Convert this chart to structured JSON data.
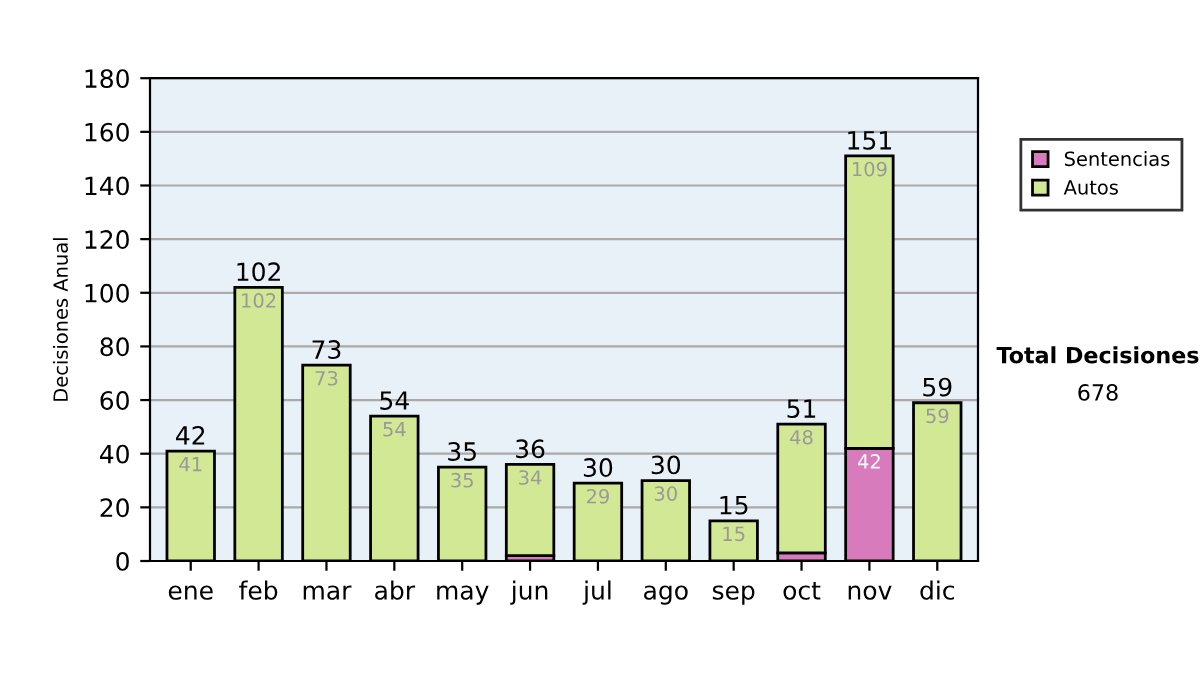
{
  "chart_data": {
    "type": "bar",
    "stacked": true,
    "ylabel": "Decisiones Anual",
    "categories": [
      "ene",
      "feb",
      "mar",
      "abr",
      "may",
      "jun",
      "jul",
      "ago",
      "sep",
      "oct",
      "nov",
      "dic"
    ],
    "series": [
      {
        "name": "Sentencias",
        "color": "#d77bbd",
        "values": [
          null,
          0,
          0,
          0,
          0,
          2,
          null,
          0,
          0,
          3,
          42,
          0
        ],
        "value_labels": [
          null,
          null,
          null,
          null,
          null,
          null,
          null,
          null,
          null,
          null,
          "42",
          null
        ]
      },
      {
        "name": "Autos",
        "color": "#d2e894",
        "values": [
          41,
          102,
          73,
          54,
          35,
          34,
          29,
          30,
          15,
          48,
          109,
          59
        ],
        "value_labels": [
          "41",
          "102",
          "73",
          "54",
          "35",
          "34",
          "29",
          "30",
          "15",
          "48",
          "109",
          "59"
        ]
      }
    ],
    "totals": [
      "42",
      "102",
      "73",
      "54",
      "35",
      "36",
      "30",
      "30",
      "15",
      "51",
      "151",
      "59"
    ],
    "ylim": [
      0,
      180
    ],
    "yticks": [
      0,
      20,
      40,
      60,
      80,
      100,
      120,
      140,
      160,
      180
    ],
    "grid": "y",
    "legend": "right",
    "annotations": [
      "Total Decisiones",
      "678"
    ]
  }
}
